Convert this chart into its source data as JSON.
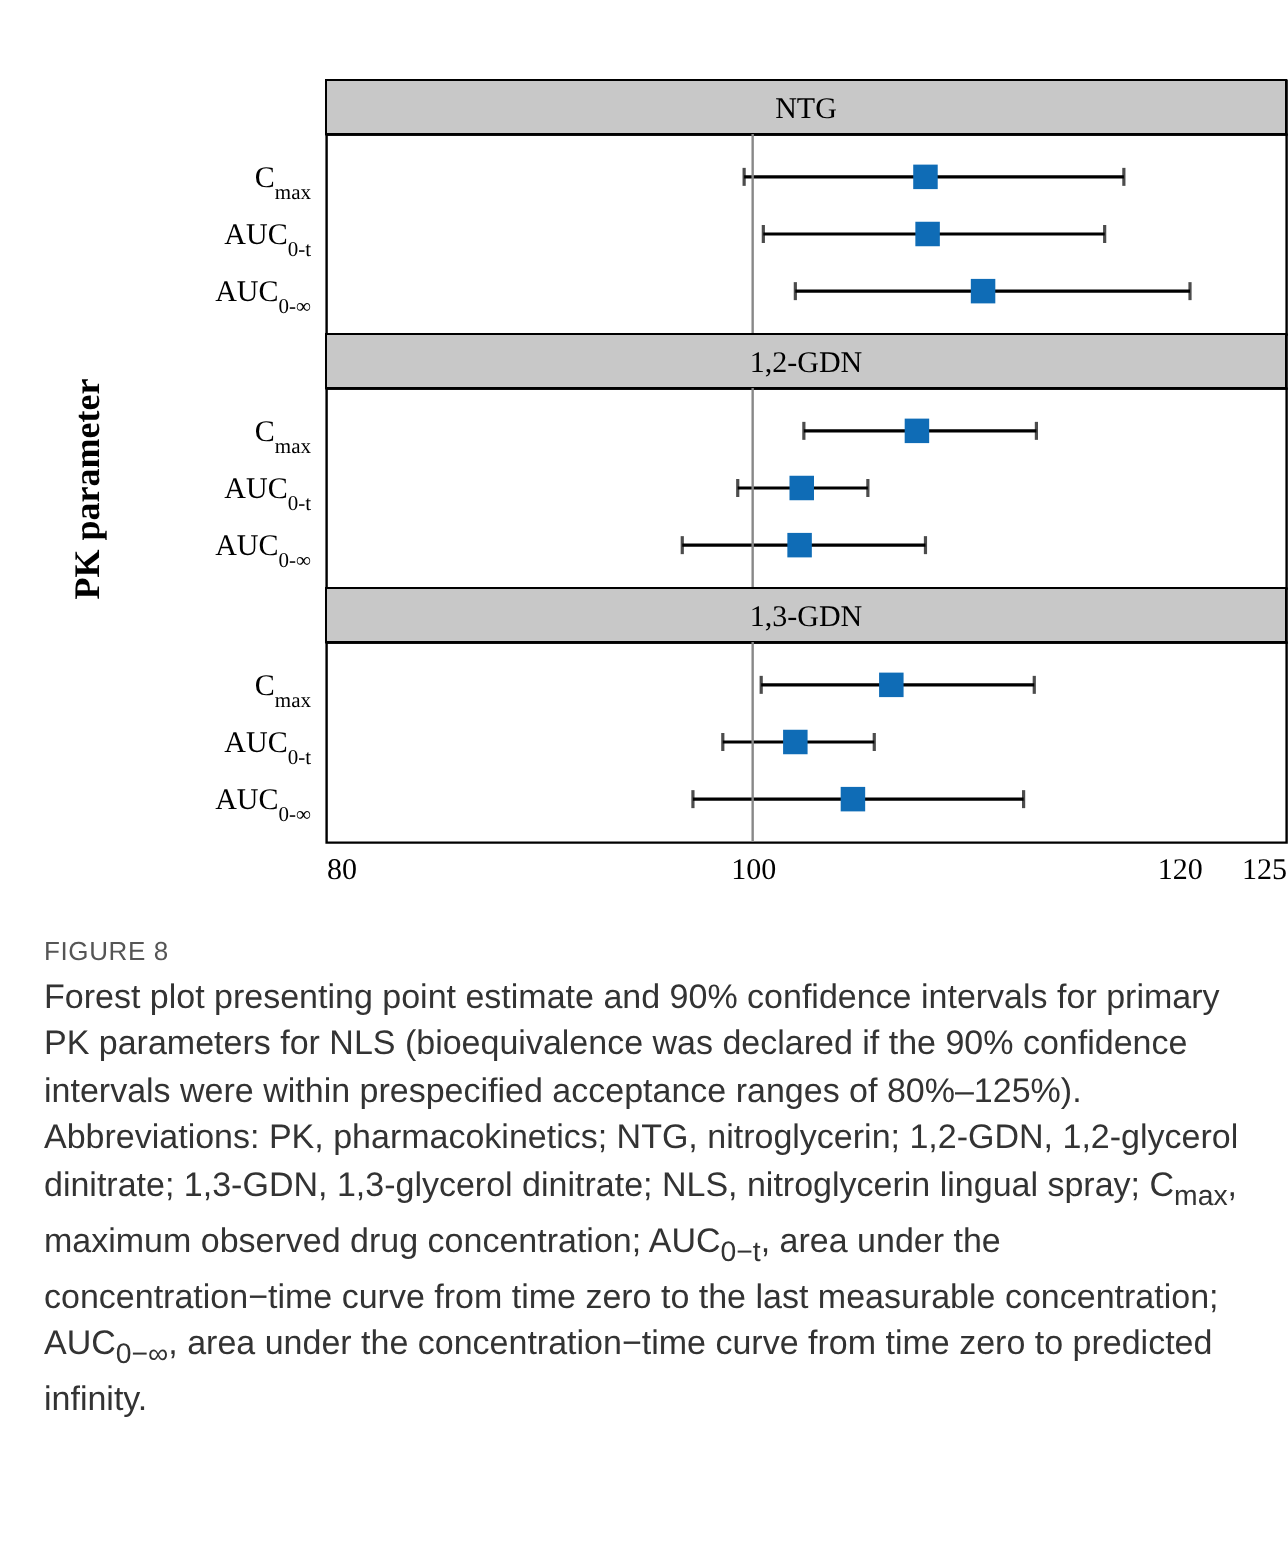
{
  "chart_data": [
    {
      "type": "scatter",
      "title": "NTG",
      "orientation": "horizontal",
      "categories": [
        "C$_{max}$",
        "AUC$_{0-t}$",
        "AUC$_{0-∞}$"
      ],
      "values": [
        108.1,
        108.2,
        110.8
      ],
      "errors": [
        [
          99.6,
          117.4
        ],
        [
          100.5,
          116.5
        ],
        [
          102.0,
          120.5
        ]
      ],
      "color": "#0f6cb6",
      "marker": "square",
      "xlim": [
        80,
        125
      ],
      "xticks": [
        80,
        100,
        120,
        125
      ],
      "tick_labels": "y",
      "ref_lines": [
        {
          "axis": "x",
          "value": 100,
          "color": "#888888"
        }
      ]
    },
    {
      "type": "scatter",
      "title": "1,2-GDN",
      "orientation": "horizontal",
      "ylabel": "PK parameter",
      "categories": [
        "C$_{max}$",
        "AUC$_{0-t}$",
        "AUC$_{0-∞}$"
      ],
      "values": [
        107.7,
        102.3,
        102.2
      ],
      "errors": [
        [
          102.4,
          113.3
        ],
        [
          99.3,
          105.4
        ],
        [
          96.7,
          108.1
        ]
      ],
      "color": "#0f6cb6",
      "marker": "square",
      "xlim": [
        80,
        125
      ],
      "xticks": [
        80,
        100,
        120,
        125
      ],
      "tick_labels": "y",
      "ref_lines": [
        {
          "axis": "x",
          "value": 100,
          "color": "#888888"
        }
      ]
    },
    {
      "type": "scatter",
      "title": "1,3-GDN",
      "orientation": "horizontal",
      "categories": [
        "C$_{max}$",
        "AUC$_{0-t}$",
        "AUC$_{0-∞}$"
      ],
      "values": [
        106.5,
        102.0,
        104.7
      ],
      "errors": [
        [
          100.4,
          113.2
        ],
        [
          98.6,
          105.7
        ],
        [
          97.2,
          112.7
        ]
      ],
      "color": "#0f6cb6",
      "marker": "square",
      "xlim": [
        80,
        125
      ],
      "xticks": [
        80,
        100,
        120,
        125
      ],
      "ref_lines": [
        {
          "axis": "x",
          "value": 100,
          "color": "#888888"
        }
      ],
      "annotations": [
        "FIGURE 8",
        "Forest plot presenting point estimate and 90% confidence intervals for primary PK parameters for NLS (bioequivalence was declared if the 90% confidence intervals were within prespecified acceptance ranges of 80%–125%). Abbreviations: PK, pharmacokinetics; NTG, nitroglycerin; 1,2-GDN, 1,2-glycerol dinitrate; 1,3-GDN, 1,3-glycerol dinitrate; NLS, nitroglycerin lingual spray; C$_{max}$, maximum observed drug concentration; AUC$_{0−t}$, area under the concentration−time curve from time zero to the last measurable concentration; AUC$_{0−∞}$, area under the concentration−time curve from time zero to predicted infinity."
      ]
    }
  ]
}
